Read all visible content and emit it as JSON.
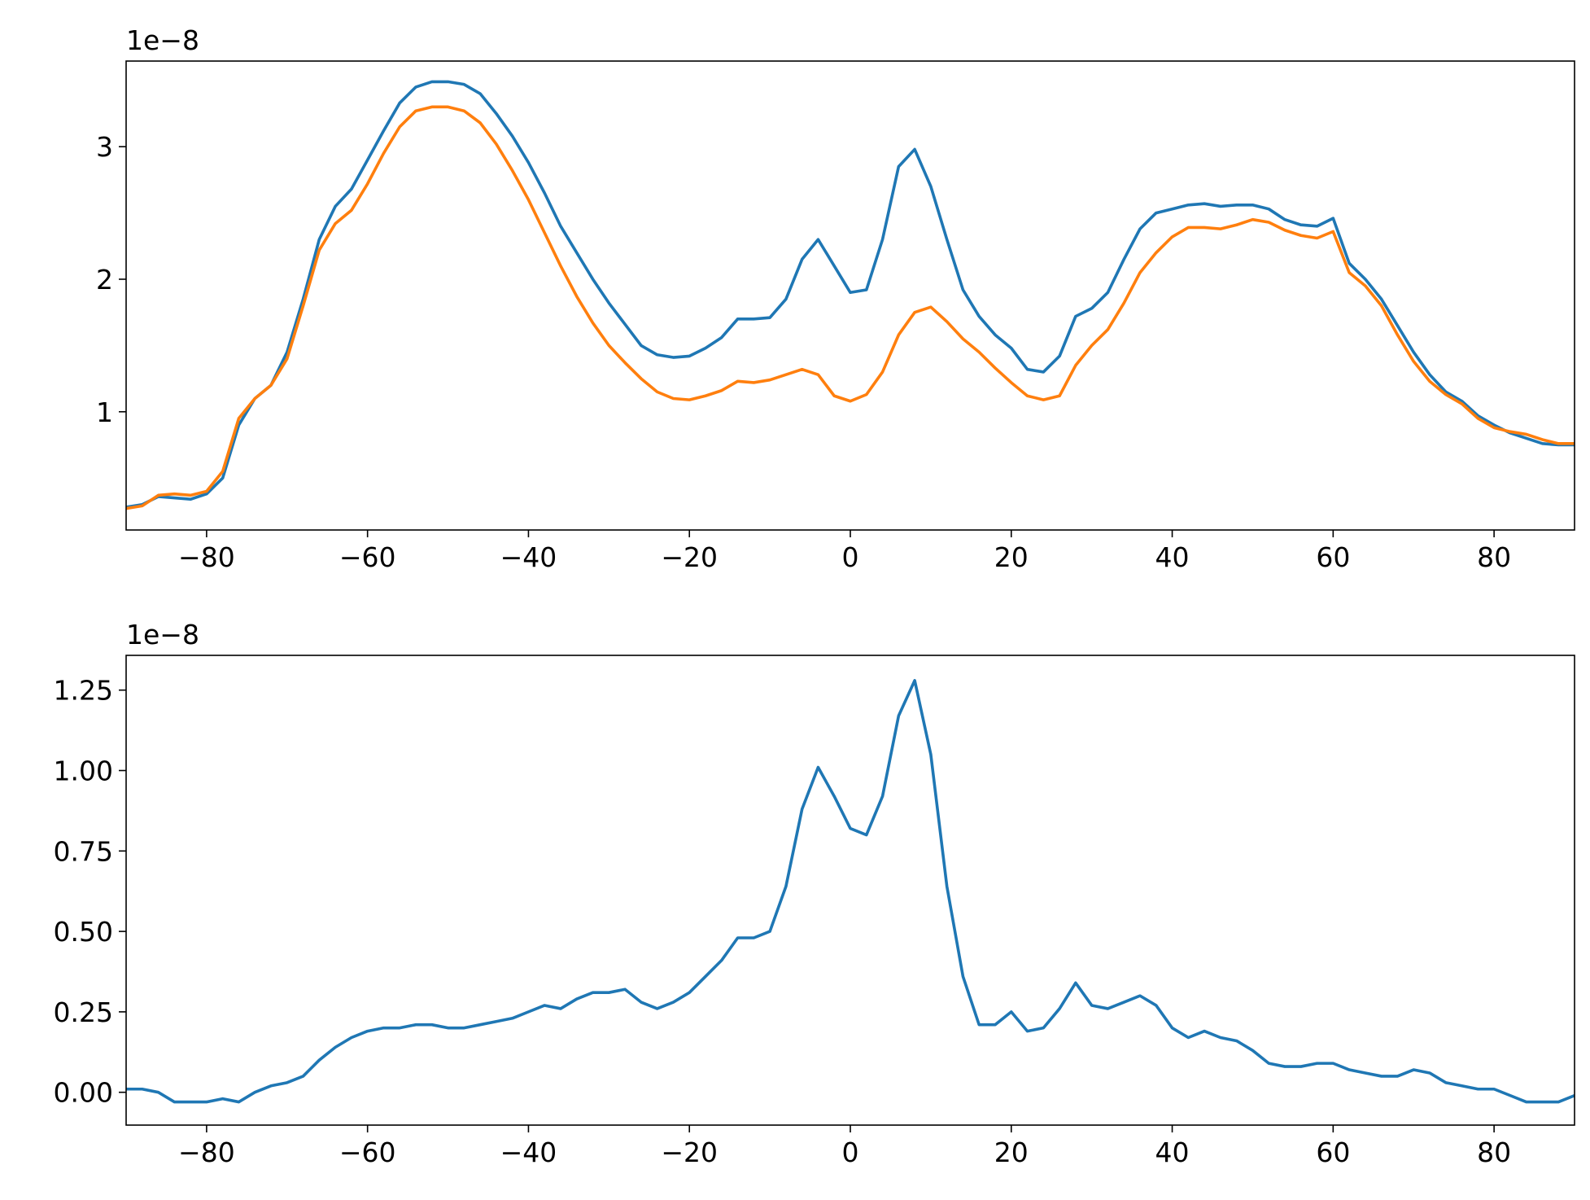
{
  "chart_data": [
    {
      "type": "line",
      "offset_label": "1e−8",
      "x": [
        -90,
        -88,
        -86,
        -84,
        -82,
        -80,
        -78,
        -76,
        -74,
        -72,
        -70,
        -68,
        -66,
        -64,
        -62,
        -60,
        -58,
        -56,
        -54,
        -52,
        -50,
        -48,
        -46,
        -44,
        -42,
        -40,
        -38,
        -36,
        -34,
        -32,
        -30,
        -28,
        -26,
        -24,
        -22,
        -20,
        -18,
        -16,
        -14,
        -12,
        -10,
        -8,
        -6,
        -4,
        -2,
        0,
        2,
        4,
        6,
        8,
        10,
        12,
        14,
        16,
        18,
        20,
        22,
        24,
        26,
        28,
        30,
        32,
        34,
        36,
        38,
        40,
        42,
        44,
        46,
        48,
        50,
        52,
        54,
        56,
        58,
        60,
        62,
        64,
        66,
        68,
        70,
        72,
        74,
        76,
        78,
        80,
        82,
        84,
        86,
        88,
        90
      ],
      "series": [
        {
          "color": "#1f77b4",
          "values": [
            0.28,
            0.3,
            0.36,
            0.35,
            0.34,
            0.38,
            0.5,
            0.9,
            1.1,
            1.2,
            1.45,
            1.85,
            2.3,
            2.55,
            2.68,
            2.9,
            3.12,
            3.33,
            3.45,
            3.49,
            3.49,
            3.47,
            3.4,
            3.25,
            3.08,
            2.88,
            2.65,
            2.4,
            2.2,
            2.0,
            1.82,
            1.66,
            1.5,
            1.43,
            1.41,
            1.42,
            1.48,
            1.56,
            1.7,
            1.7,
            1.71,
            1.85,
            2.15,
            2.3,
            2.1,
            1.9,
            1.92,
            2.3,
            2.85,
            2.98,
            2.7,
            2.3,
            1.92,
            1.72,
            1.58,
            1.48,
            1.32,
            1.3,
            1.42,
            1.72,
            1.78,
            1.9,
            2.15,
            2.38,
            2.5,
            2.53,
            2.56,
            2.57,
            2.55,
            2.56,
            2.56,
            2.53,
            2.45,
            2.41,
            2.4,
            2.46,
            2.12,
            2.0,
            1.85,
            1.65,
            1.45,
            1.28,
            1.15,
            1.08,
            0.97,
            0.9,
            0.84,
            0.8,
            0.76,
            0.75,
            0.75
          ]
        },
        {
          "color": "#ff7f0e",
          "values": [
            0.27,
            0.29,
            0.37,
            0.38,
            0.37,
            0.4,
            0.55,
            0.95,
            1.1,
            1.2,
            1.4,
            1.8,
            2.22,
            2.42,
            2.52,
            2.72,
            2.95,
            3.15,
            3.27,
            3.3,
            3.3,
            3.27,
            3.18,
            3.02,
            2.82,
            2.6,
            2.35,
            2.1,
            1.87,
            1.67,
            1.5,
            1.37,
            1.25,
            1.15,
            1.1,
            1.09,
            1.12,
            1.16,
            1.23,
            1.22,
            1.24,
            1.28,
            1.32,
            1.28,
            1.12,
            1.08,
            1.13,
            1.3,
            1.58,
            1.75,
            1.79,
            1.68,
            1.55,
            1.45,
            1.33,
            1.22,
            1.12,
            1.09,
            1.12,
            1.35,
            1.5,
            1.62,
            1.82,
            2.05,
            2.2,
            2.32,
            2.39,
            2.39,
            2.38,
            2.41,
            2.45,
            2.43,
            2.37,
            2.33,
            2.31,
            2.36,
            2.05,
            1.95,
            1.8,
            1.58,
            1.38,
            1.23,
            1.13,
            1.06,
            0.95,
            0.88,
            0.85,
            0.83,
            0.79,
            0.76,
            0.76
          ]
        }
      ],
      "xlim": [
        -90,
        90
      ],
      "xticks": [
        {
          "value": -80,
          "label": "−80"
        },
        {
          "value": -60,
          "label": "−60"
        },
        {
          "value": -40,
          "label": "−40"
        },
        {
          "value": -20,
          "label": "−20"
        },
        0,
        20,
        40,
        60,
        80
      ],
      "ylim": [
        0.108,
        3.646
      ],
      "yticks": [
        1,
        2,
        3
      ]
    },
    {
      "type": "line",
      "offset_label": "1e−8",
      "x": [
        -90,
        -88,
        -86,
        -84,
        -82,
        -80,
        -78,
        -76,
        -74,
        -72,
        -70,
        -68,
        -66,
        -64,
        -62,
        -60,
        -58,
        -56,
        -54,
        -52,
        -50,
        -48,
        -46,
        -44,
        -42,
        -40,
        -38,
        -36,
        -34,
        -32,
        -30,
        -28,
        -26,
        -24,
        -22,
        -20,
        -18,
        -16,
        -14,
        -12,
        -10,
        -8,
        -6,
        -4,
        -2,
        0,
        2,
        4,
        6,
        8,
        10,
        12,
        14,
        16,
        18,
        20,
        22,
        24,
        26,
        28,
        30,
        32,
        34,
        36,
        38,
        40,
        42,
        44,
        46,
        48,
        50,
        52,
        54,
        56,
        58,
        60,
        62,
        64,
        66,
        68,
        70,
        72,
        74,
        76,
        78,
        80,
        82,
        84,
        86,
        88,
        90
      ],
      "series": [
        {
          "color": "#1f77b4",
          "values": [
            0.01,
            0.01,
            0.0,
            -0.03,
            -0.03,
            -0.03,
            -0.02,
            -0.03,
            0.0,
            0.02,
            0.03,
            0.05,
            0.1,
            0.14,
            0.17,
            0.19,
            0.2,
            0.2,
            0.21,
            0.21,
            0.2,
            0.2,
            0.21,
            0.22,
            0.23,
            0.25,
            0.27,
            0.26,
            0.29,
            0.31,
            0.31,
            0.32,
            0.28,
            0.26,
            0.28,
            0.31,
            0.36,
            0.41,
            0.48,
            0.48,
            0.5,
            0.64,
            0.88,
            1.01,
            0.92,
            0.82,
            0.8,
            0.92,
            1.17,
            1.28,
            1.05,
            0.64,
            0.36,
            0.21,
            0.21,
            0.25,
            0.19,
            0.2,
            0.26,
            0.34,
            0.27,
            0.26,
            0.28,
            0.3,
            0.27,
            0.2,
            0.17,
            0.19,
            0.17,
            0.16,
            0.13,
            0.09,
            0.08,
            0.08,
            0.09,
            0.09,
            0.07,
            0.06,
            0.05,
            0.05,
            0.07,
            0.06,
            0.03,
            0.02,
            0.01,
            0.01,
            -0.01,
            -0.03,
            -0.03,
            -0.03,
            -0.01
          ]
        }
      ],
      "xlim": [
        -90,
        90
      ],
      "xticks": [
        {
          "value": -80,
          "label": "−80"
        },
        {
          "value": -60,
          "label": "−60"
        },
        {
          "value": -40,
          "label": "−40"
        },
        {
          "value": -20,
          "label": "−20"
        },
        0,
        20,
        40,
        60,
        80
      ],
      "ylim": [
        -0.102,
        1.358
      ],
      "yticks": [
        {
          "value": 0,
          "label": "0.00"
        },
        {
          "value": 0.25,
          "label": "0.25"
        },
        {
          "value": 0.5,
          "label": "0.50"
        },
        {
          "value": 0.75,
          "label": "0.75"
        },
        {
          "value": 1.0,
          "label": "1.00"
        },
        {
          "value": 1.25,
          "label": "1.25"
        }
      ]
    }
  ]
}
